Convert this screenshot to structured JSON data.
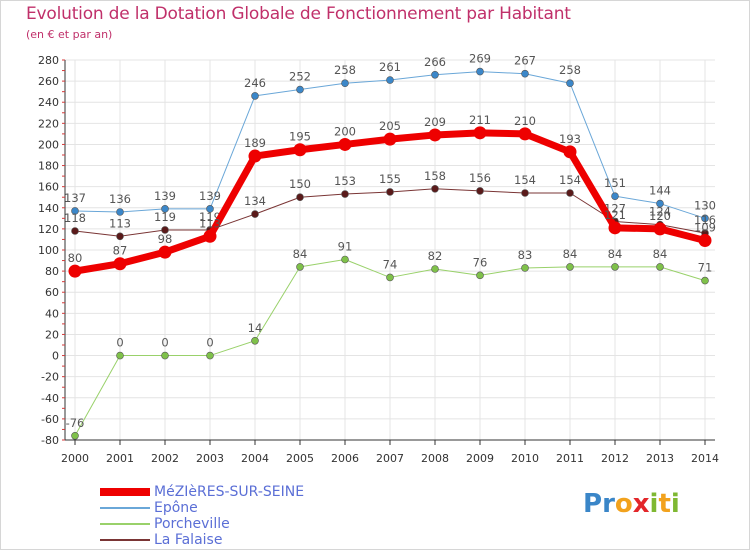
{
  "title": "Evolution de la Dotation Globale de Fonctionnement par Habitant",
  "subtitle": "(en € et par an)",
  "logo": {
    "text": "ProXiti",
    "letters": [
      "P",
      "r",
      "o",
      "x",
      "i",
      "t",
      "i"
    ],
    "colors": [
      "#3a86c8",
      "#3a86c8",
      "#f2a21d",
      "#e3262a",
      "#7fb832",
      "#f2a21d",
      "#7fb832"
    ]
  },
  "chart_data": {
    "type": "line",
    "x": [
      "2000",
      "2001",
      "2002",
      "2003",
      "2004",
      "2005",
      "2006",
      "2007",
      "2008",
      "2009",
      "2010",
      "2011",
      "2012",
      "2013",
      "2014"
    ],
    "ylim": [
      -80,
      280
    ],
    "yticks": [
      -80,
      -60,
      -40,
      -20,
      0,
      20,
      40,
      60,
      80,
      100,
      120,
      140,
      160,
      180,
      200,
      220,
      240,
      260,
      280
    ],
    "grid": true,
    "legend_position": "bottom-left",
    "series": [
      {
        "name": "Epône",
        "color": "#6aa7d8",
        "marker": "#3b87c9",
        "width": 1,
        "values": [
          137,
          136,
          139,
          139,
          246,
          252,
          258,
          261,
          266,
          269,
          267,
          258,
          151,
          144,
          130
        ],
        "labels": [
          "137",
          "136",
          "139",
          "139",
          "246",
          "252",
          "258",
          "261",
          "266",
          "269",
          "267",
          "258",
          "151",
          "144",
          "130"
        ]
      },
      {
        "name": "La Falaise",
        "color": "#7a3535",
        "marker": "#5a1a1a",
        "width": 1,
        "values": [
          118,
          113,
          119,
          119,
          134,
          150,
          153,
          155,
          158,
          156,
          154,
          154,
          127,
          124,
          116
        ],
        "labels": [
          "118",
          "113",
          "119",
          "119",
          "134",
          "150",
          "153",
          "155",
          "158",
          "156",
          "154",
          "154",
          "127",
          "124",
          "116"
        ]
      },
      {
        "name": "Porcheville",
        "color": "#99d16a",
        "marker": "#7fc14a",
        "width": 1,
        "values": [
          -76,
          0,
          0,
          0,
          14,
          84,
          91,
          74,
          82,
          76,
          83,
          84,
          84,
          84,
          71
        ],
        "labels": [
          "-76",
          "0",
          "0",
          "0",
          "14",
          "84",
          "91",
          "74",
          "82",
          "76",
          "83",
          "84",
          "84",
          "84",
          "71"
        ]
      },
      {
        "name": "MéZIèRES-SUR-SEINE",
        "color": "#ee0000",
        "marker": "#ee0000",
        "width": 7,
        "values": [
          80,
          87,
          98,
          113,
          189,
          195,
          200,
          205,
          209,
          211,
          210,
          193,
          121,
          120,
          109
        ],
        "labels": [
          "80",
          "87",
          "98",
          "113",
          "189",
          "195",
          "200",
          "205",
          "209",
          "211",
          "210",
          "193",
          "121",
          "120",
          "109"
        ]
      }
    ],
    "legend": [
      {
        "label": "MéZIèRES-SUR-SEINE",
        "color": "#ee0000",
        "thick": true
      },
      {
        "label": "Epône",
        "color": "#6aa7d8",
        "thick": false
      },
      {
        "label": "Porcheville",
        "color": "#99d16a",
        "thick": false
      },
      {
        "label": "La Falaise",
        "color": "#7a3535",
        "thick": false
      }
    ]
  }
}
